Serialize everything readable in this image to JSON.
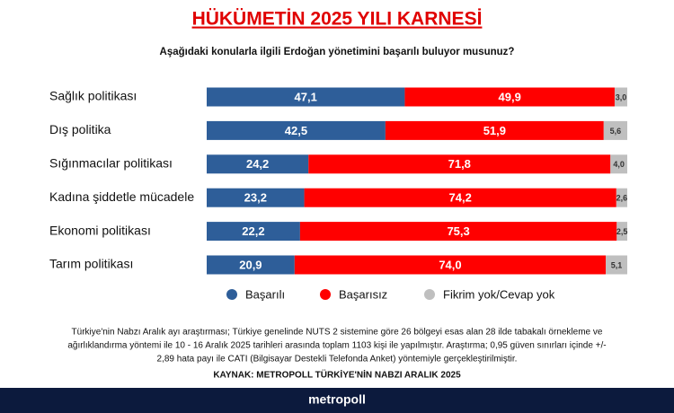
{
  "chart_data": {
    "type": "stacked-hbar",
    "title": "HÜKÜMETİN 2025 YILI KARNESİ",
    "subtitle": "Aşağıdaki konularla ilgili Erdoğan yönetimini başarılı buluyor musunuz?",
    "categories": [
      "Sağlık politikası",
      "Dış politika",
      "Sığınmacılar politikası",
      "Kadına şiddetle mücadele",
      "Ekonomi politikası",
      "Tarım politikası"
    ],
    "xlim": [
      0,
      100
    ],
    "series": [
      {
        "name": "Başarılı",
        "color": "#2e5e99",
        "values": [
          47.1,
          42.5,
          24.2,
          23.2,
          22.2,
          20.9
        ],
        "value_labels": [
          "47,1",
          "42,5",
          "24,2",
          "23,2",
          "22,2",
          "20,9"
        ]
      },
      {
        "name": "Başarısız",
        "color": "#ff0000",
        "values": [
          49.9,
          51.9,
          71.8,
          74.2,
          75.3,
          74
        ],
        "value_labels": [
          "49,9",
          "51,9",
          "71,8",
          "74,2",
          "75,3",
          "74,0"
        ]
      },
      {
        "name": "Fikrim yok/Cevap yok",
        "color": "#bfbfbf",
        "values": [
          3,
          5.6,
          4,
          2.6,
          2.5,
          5.1
        ],
        "value_labels": [
          "3,0",
          "5,6",
          "4,0",
          "2,6",
          "2,5",
          "5,1"
        ]
      }
    ],
    "notes": [
      "Türkiye'nin Nabzı Aralık ayı araştırması; Türkiye genelinde NUTS 2 sistemine göre 26 bölgeyi esas alan 28 ilde tabakalı örnekleme ve",
      "ağırlıklandırma yöntemi ile 10 - 16 Aralık 2025 tarihleri arasında toplam 1103 kişi ile yapılmıştır. Araştırma; 0,95 güven sınırları içinde +/-",
      "2,89 hata payı ile CATI (Bilgisayar Destekli Telefonda Anket) yöntemiyle gerçekleştirilmiştir."
    ],
    "source": "KAYNAK: METROPOLL TÜRKİYE'NİN NABZI ARALIK 2025",
    "brand": "metropoll"
  }
}
